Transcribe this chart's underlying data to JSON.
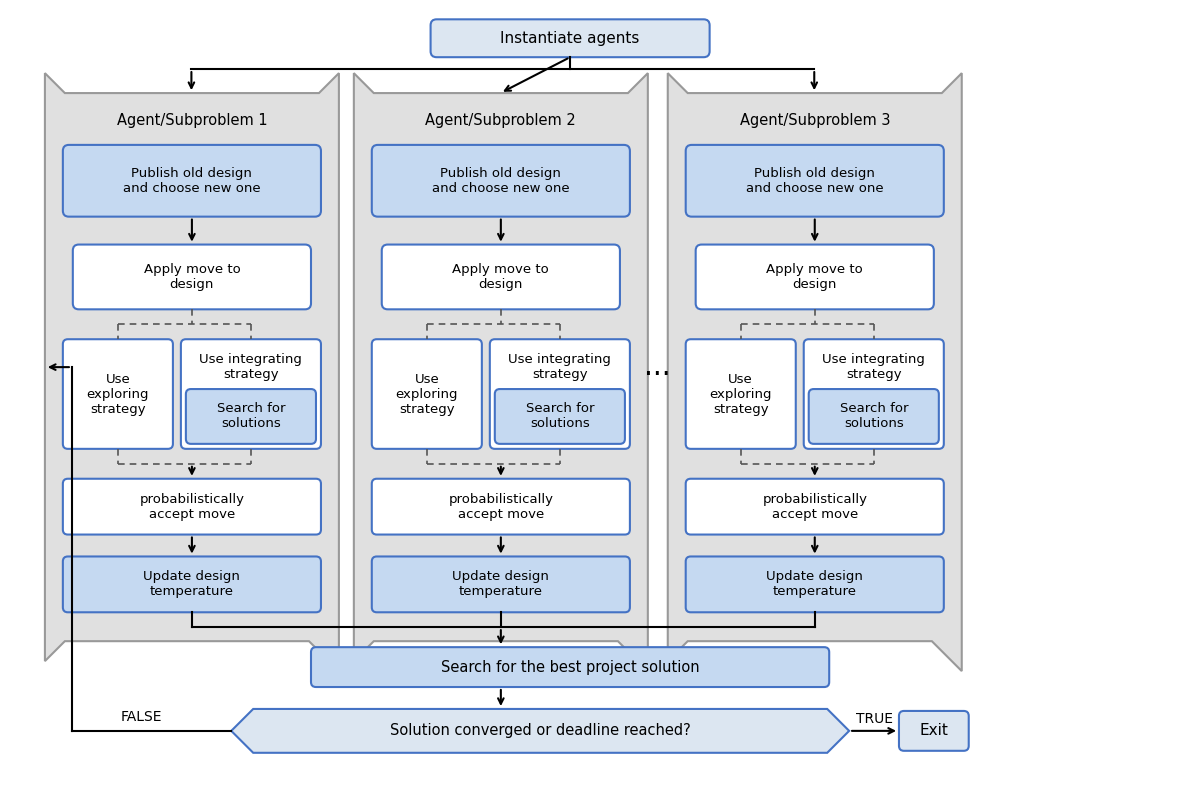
{
  "bg_color": "#ffffff",
  "box_fill_blue": "#c5d9f1",
  "box_fill_white": "#ffffff",
  "box_fill_light": "#dce6f1",
  "box_stroke_blue": "#4472c4",
  "outer_fill": "#e0e0e0",
  "outer_stroke": "#999999",
  "arrow_color": "#000000",
  "text_color": "#000000",
  "title": "Instantiate agents",
  "agents": [
    "Agent/Subproblem 1",
    "Agent/Subproblem 2",
    "Agent/Subproblem 3"
  ],
  "bottom_box1": "Search for the best project solution",
  "bottom_box2": "Solution converged or deadline reached?",
  "exit_label": "Exit",
  "false_label": "FALSE",
  "true_label": "TRUE",
  "ellipsis": "..."
}
